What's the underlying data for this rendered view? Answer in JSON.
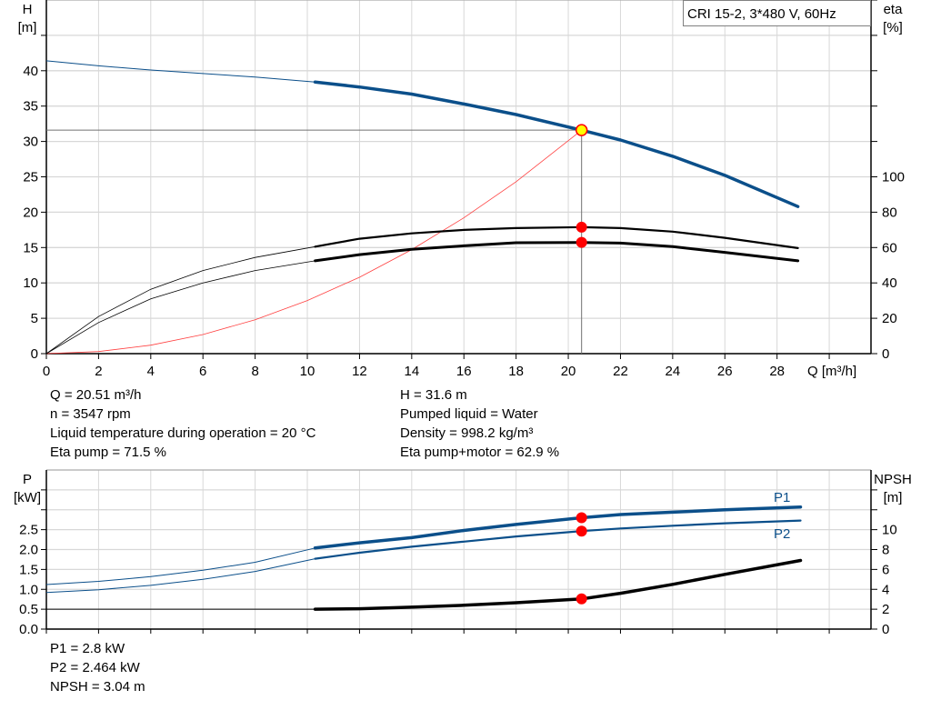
{
  "chart_data": [
    {
      "type": "line",
      "title": "CRI 15-2, 3*480 V, 60Hz",
      "xlabel": "Q [m³/h]",
      "ylabel": "H\n[m]",
      "y2label": "eta\n[%]",
      "xlim": [
        0,
        31.6
      ],
      "ylim": [
        0,
        50
      ],
      "y2lim": [
        0,
        200
      ],
      "grid": true,
      "xticks": [
        0,
        2,
        4,
        6,
        8,
        10,
        12,
        14,
        16,
        18,
        20,
        22,
        24,
        26,
        28
      ],
      "yticks": [
        0,
        5,
        10,
        15,
        20,
        25,
        30,
        35,
        40
      ],
      "y2ticks": [
        0,
        20,
        40,
        60,
        80,
        100
      ],
      "series": [
        {
          "id": "H",
          "axis": "left",
          "color": "#0b4f8a",
          "x": [
            0,
            2,
            4,
            6,
            8,
            10.3,
            12,
            14,
            16,
            18,
            20.51,
            22,
            24,
            26,
            28.8
          ],
          "y": [
            41.4,
            40.7,
            40.1,
            39.6,
            39.1,
            38.4,
            37.7,
            36.7,
            35.3,
            33.8,
            31.6,
            30.2,
            27.9,
            25.2,
            20.8
          ]
        },
        {
          "id": "eta_pump",
          "axis": "right",
          "color": "#000000",
          "x": [
            0,
            2,
            4,
            6,
            8,
            10.3,
            12,
            14,
            16,
            18,
            20.51,
            22,
            24,
            26,
            28.8
          ],
          "y": [
            0,
            21,
            36.4,
            47,
            54.4,
            60.5,
            65,
            68,
            70,
            71,
            71.5,
            71,
            69,
            65.5,
            59.7
          ]
        },
        {
          "id": "eta_pump_motor",
          "axis": "right",
          "color": "#000000",
          "x": [
            0,
            2,
            4,
            6,
            8,
            10.3,
            12,
            14,
            16,
            18,
            20.51,
            22,
            24,
            26,
            28.8
          ],
          "y": [
            0,
            17.6,
            31,
            40,
            47,
            52.5,
            56,
            59,
            61,
            62.7,
            62.9,
            62.5,
            60.5,
            57.3,
            52.5
          ]
        },
        {
          "id": "system",
          "axis": "left",
          "color": "#ff0000",
          "x": [
            0,
            2,
            4,
            6,
            8,
            10,
            12,
            14,
            16,
            18,
            20.51
          ],
          "y": [
            0,
            0.3,
            1.2,
            2.7,
            4.8,
            7.5,
            10.8,
            14.7,
            19.2,
            24.3,
            31.6
          ]
        }
      ],
      "duty_point": {
        "Q": 20.51,
        "H": 31.6,
        "eta_pump": 71.5,
        "eta_pump_motor": 62.9
      }
    },
    {
      "type": "line",
      "xlabel": "",
      "ylabel": "P\n[kW]",
      "y2label": "NPSH\n[m]",
      "xlim": [
        0,
        31.6
      ],
      "ylim": [
        0,
        4.0
      ],
      "y2lim": [
        0,
        16
      ],
      "grid": true,
      "yticks": [
        "0.0",
        "0.5",
        "1.0",
        "1.5",
        "2.0",
        "2.5"
      ],
      "y2ticks": [
        0,
        2,
        4,
        6,
        8,
        10
      ],
      "series": [
        {
          "id": "P1",
          "name": "P1",
          "axis": "left",
          "color": "#0b4f8a",
          "x": [
            0,
            2,
            4,
            6,
            8,
            10.3,
            12,
            14,
            16,
            18,
            20.51,
            22,
            24,
            26,
            28.9
          ],
          "y": [
            1.12,
            1.2,
            1.32,
            1.48,
            1.68,
            2.04,
            2.17,
            2.3,
            2.48,
            2.63,
            2.8,
            2.88,
            2.94,
            3.0,
            3.07
          ]
        },
        {
          "id": "P2",
          "name": "P2",
          "axis": "left",
          "color": "#0b4f8a",
          "x": [
            0,
            2,
            4,
            6,
            8,
            10.3,
            12,
            14,
            16,
            18,
            20.51,
            22,
            24,
            26,
            28.9
          ],
          "y": [
            0.92,
            0.99,
            1.1,
            1.25,
            1.45,
            1.77,
            1.92,
            2.07,
            2.2,
            2.33,
            2.464,
            2.53,
            2.6,
            2.66,
            2.73
          ]
        },
        {
          "id": "NPSH",
          "axis": "right",
          "color": "#000000",
          "x": [
            0,
            10.3,
            12,
            14,
            16,
            18,
            20.51,
            22,
            24,
            26,
            28.9
          ],
          "y": [
            2.0,
            2.0,
            2.05,
            2.2,
            2.4,
            2.65,
            3.04,
            3.6,
            4.5,
            5.5,
            6.9
          ]
        }
      ]
    }
  ],
  "info_top": {
    "left": [
      "Q = 20.51 m³/h",
      "n = 3547 rpm",
      "Liquid temperature during operation = 20 °C",
      "Eta pump = 71.5 %"
    ],
    "right": [
      "H = 31.6 m",
      "Pumped liquid = Water",
      "Density = 998.2 kg/m³",
      "Eta pump+motor = 62.9 %"
    ]
  },
  "info_bottom": [
    "P1 = 2.8 kW",
    "P2 = 2.464 kW",
    "NPSH = 3.04 m"
  ]
}
